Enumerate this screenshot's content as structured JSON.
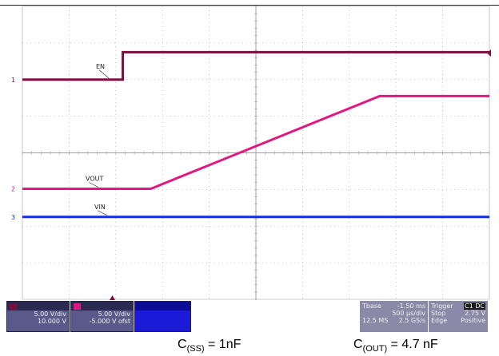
{
  "chart_data": {
    "type": "line",
    "x_divisions": 10,
    "y_divisions": 8,
    "grid": true,
    "series": [
      {
        "name": "EN",
        "marker": "1",
        "color": "#7b1040",
        "x": [
          0,
          2.15,
          2.15,
          10
        ],
        "y": [
          6.0,
          6.0,
          6.75,
          6.75
        ]
      },
      {
        "name": "VOUT",
        "marker": "2",
        "color": "#e01880",
        "x": [
          0,
          2.75,
          7.65,
          10
        ],
        "y": [
          3.02,
          3.02,
          5.55,
          5.55
        ]
      },
      {
        "name": "VIN",
        "marker": "3",
        "color": "#1030e0",
        "x": [
          0,
          10
        ],
        "y": [
          2.25,
          2.25
        ]
      }
    ]
  },
  "status_bar": {
    "ch1": {
      "scale": "5.00 V/div",
      "offset": "10.000 V"
    },
    "ch2": {
      "scale": "5.00 V/div",
      "offset": "-5.000 V ofst"
    },
    "timebase": {
      "label": "Tbase",
      "position": "-1.50 ms",
      "scale": "500 µs/div",
      "samples": "12.5 MS",
      "rate": "2.5 GS/s"
    },
    "trigger": {
      "label": "Trigger",
      "source": "C1 DC",
      "mode": "Stop",
      "level": "2.75 V",
      "type": "Edge",
      "slope": "Positive"
    }
  },
  "caption": {
    "left_main": "C",
    "left_sub": "(SS)",
    "left_rest": " = 1nF",
    "right_main": "C",
    "right_sub": "(OUT)",
    "right_rest": " = 4.7 nF"
  }
}
